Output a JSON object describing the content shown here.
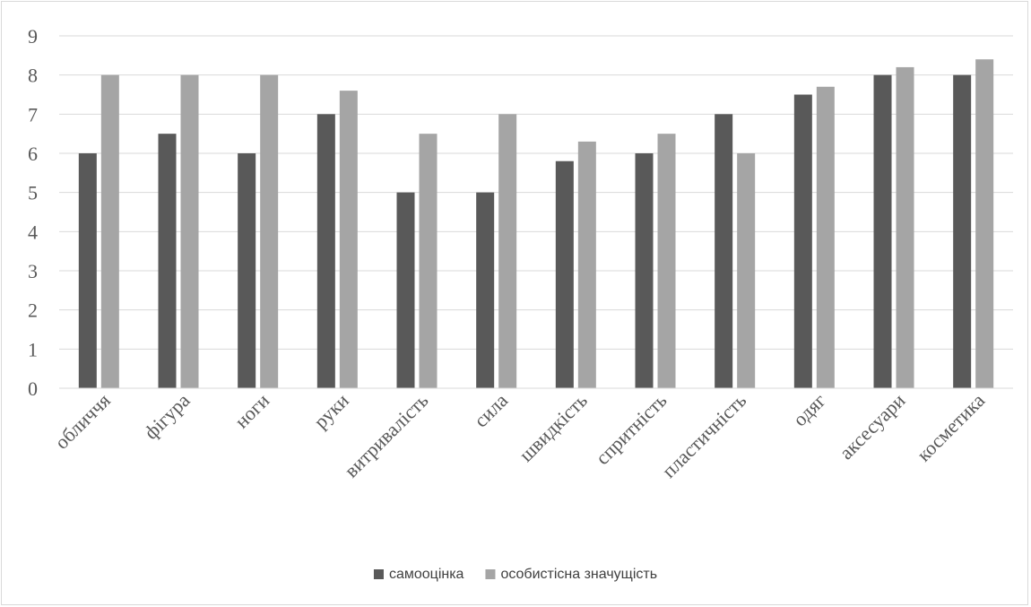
{
  "chart_data": {
    "type": "bar",
    "title": "",
    "xlabel": "",
    "ylabel": "",
    "categories": [
      "обличчя",
      "фігура",
      "ноги",
      "руки",
      "витривалість",
      "сила",
      "швидкість",
      "спритність",
      "пластичність",
      "одяг",
      "аксесуари",
      "косметика"
    ],
    "series": [
      {
        "name": "самооцінка",
        "color": "#595959",
        "values": [
          6,
          6.5,
          6,
          7,
          5,
          5,
          5.8,
          6,
          7,
          7.5,
          8,
          8
        ]
      },
      {
        "name": "особистісна значущість",
        "color": "#a5a5a5",
        "values": [
          8,
          8,
          8,
          7.6,
          6.5,
          7,
          6.3,
          6.5,
          6,
          7.7,
          8.2,
          8.4
        ]
      }
    ],
    "ylim": [
      0,
      9
    ],
    "yticks": [
      "0",
      "1",
      "2",
      "3",
      "4",
      "5",
      "6",
      "7",
      "8",
      "9"
    ],
    "grid": true,
    "legend_position": "bottom"
  }
}
